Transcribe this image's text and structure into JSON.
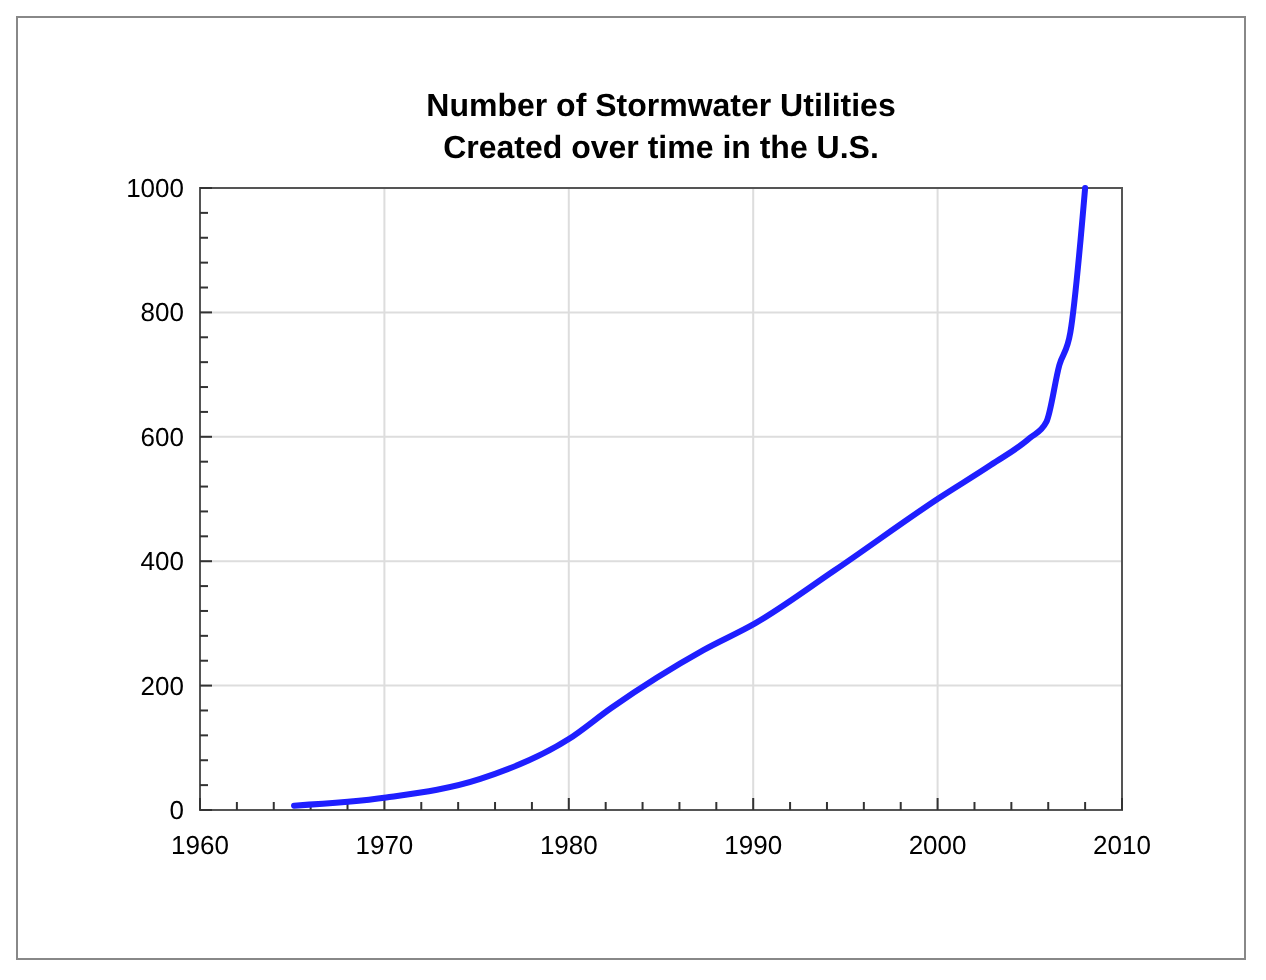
{
  "chart_data": {
    "type": "line",
    "title": "Number of Stormwater Utilities\nCreated over time in the U.S.",
    "x": [
      1965.1,
      1970.1,
      1975.2,
      1980,
      1982.3,
      1987.3,
      1990.1,
      1994.4,
      2000.1,
      2002.9,
      2005,
      2005.9,
      2006.6,
      2007.2,
      2008
    ],
    "series": [
      {
        "color": "#1f1fff",
        "values": [
          7,
          20,
          50,
          114,
          164,
          257,
          300,
          385,
          502,
          555,
          598,
          624,
          715,
          768,
          1000
        ]
      }
    ],
    "xlim": [
      1960,
      2010
    ],
    "ylim": [
      0,
      1000
    ],
    "xticks": [
      1960,
      {
        "value": 1962,
        "label": null
      },
      {
        "value": 1964,
        "label": null
      },
      {
        "value": 1966,
        "label": null
      },
      {
        "value": 1968,
        "label": null
      },
      1970,
      {
        "value": 1972,
        "label": null
      },
      {
        "value": 1974,
        "label": null
      },
      {
        "value": 1976,
        "label": null
      },
      {
        "value": 1978,
        "label": null
      },
      1980,
      {
        "value": 1982,
        "label": null
      },
      {
        "value": 1984,
        "label": null
      },
      {
        "value": 1986,
        "label": null
      },
      {
        "value": 1988,
        "label": null
      },
      1990,
      {
        "value": 1992,
        "label": null
      },
      {
        "value": 1994,
        "label": null
      },
      {
        "value": 1996,
        "label": null
      },
      {
        "value": 1998,
        "label": null
      },
      2000,
      {
        "value": 2002,
        "label": null
      },
      {
        "value": 2004,
        "label": null
      },
      {
        "value": 2006,
        "label": null
      },
      {
        "value": 2008,
        "label": null
      },
      2010
    ],
    "yticks": [
      0,
      {
        "value": 40,
        "label": null
      },
      {
        "value": 80,
        "label": null
      },
      {
        "value": 120,
        "label": null
      },
      {
        "value": 160,
        "label": null
      },
      200,
      {
        "value": 240,
        "label": null
      },
      {
        "value": 280,
        "label": null
      },
      {
        "value": 320,
        "label": null
      },
      {
        "value": 360,
        "label": null
      },
      400,
      {
        "value": 440,
        "label": null
      },
      {
        "value": 480,
        "label": null
      },
      {
        "value": 520,
        "label": null
      },
      {
        "value": 560,
        "label": null
      },
      600,
      {
        "value": 640,
        "label": null
      },
      {
        "value": 680,
        "label": null
      },
      {
        "value": 720,
        "label": null
      },
      {
        "value": 760,
        "label": null
      },
      800,
      {
        "value": 840,
        "label": null
      },
      {
        "value": 880,
        "label": null
      },
      {
        "value": 920,
        "label": null
      },
      {
        "value": 960,
        "label": null
      },
      1000
    ],
    "grid": true,
    "marker": "none",
    "line_style": "solid"
  }
}
